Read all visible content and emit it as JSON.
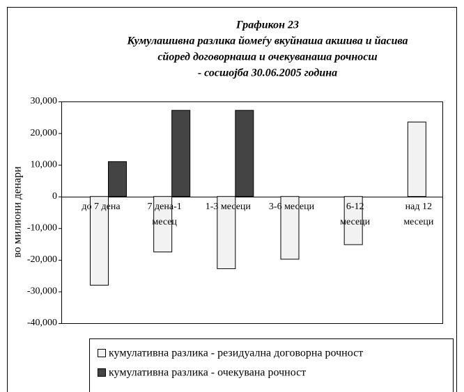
{
  "chart_data": {
    "type": "bar",
    "title": [
      "Графикон 23",
      "Кумулашивна разлика йомеѓу вкуйнаша акшива и йасива",
      "сйоред договорнаша и очекуванаша рочносш",
      "- сосшојба 30.06.2005 година"
    ],
    "y_label": "во милиони денари",
    "categories": [
      [
        "до 7 дена"
      ],
      [
        "7 дена-1",
        "месец"
      ],
      [
        "1-3 месеци"
      ],
      [
        "3-6 месеци"
      ],
      [
        "6-12",
        "месеци"
      ],
      [
        "над 12",
        "месеци"
      ]
    ],
    "series": [
      {
        "name": "кумулативна разлика - резидуална договорна рочност",
        "color": "#f2f2f2",
        "values": [
          -28000,
          -17500,
          -22800,
          -19800,
          -15200,
          23500
        ]
      },
      {
        "name": "кумулативна разлика - очекувана рочност",
        "color": "#444444",
        "values": [
          11000,
          27200,
          27200,
          null,
          null,
          null
        ]
      }
    ],
    "ylim": [
      -40000,
      30000
    ],
    "yticks": [
      {
        "value": -40000,
        "label": "-40,000"
      },
      {
        "value": -30000,
        "label": "-30,000"
      },
      {
        "value": -20000,
        "label": "-20,000"
      },
      {
        "value": -10000,
        "label": "-10,000"
      },
      0,
      {
        "value": 10000,
        "label": "10,000"
      },
      {
        "value": 20000,
        "label": "20,000"
      },
      {
        "value": 30000,
        "label": "30,000"
      }
    ]
  }
}
